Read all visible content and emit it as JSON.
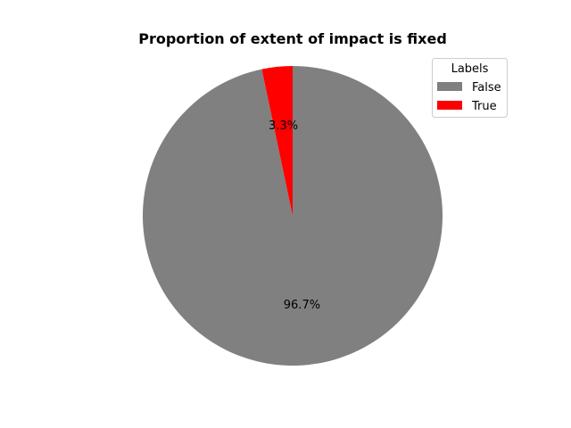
{
  "chart_data": {
    "type": "pie",
    "title": "Proportion of extent of impact is fixed",
    "categories": [
      "False",
      "True"
    ],
    "values": [
      96.7,
      3.3
    ],
    "labels": [
      "96.7%",
      "3.3%"
    ],
    "colors": [
      "#808080",
      "#ff0000"
    ],
    "start_angle": 90,
    "direction": "clockwise",
    "legend": {
      "title": "Labels",
      "entries": [
        "False",
        "True"
      ],
      "placement": "top-right"
    }
  }
}
